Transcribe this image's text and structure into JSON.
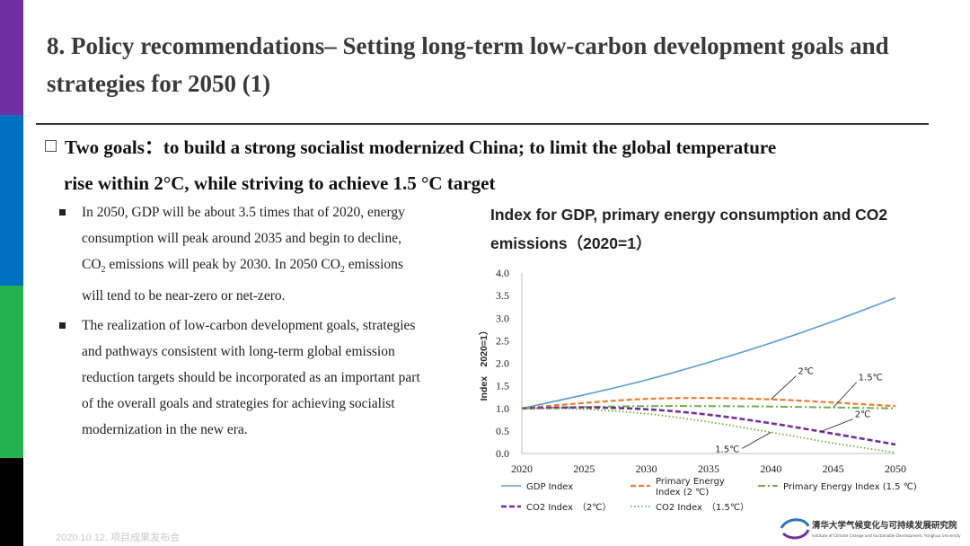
{
  "slide": {
    "title": "8. Policy recommendations– Setting long-term low-carbon development goals and strategies for 2050 (1)",
    "goal_line1": "Two goals：to build a strong socialist modernized China; to limit the global temperature",
    "goal_line2": "rise within 2°C, while striving to achieve 1.5 °C target",
    "bullet1_a": "In 2050, GDP will be about 3.5 times that of 2020, energy consumption will peak around 2035 and begin to decline, CO",
    "bullet1_b": " emissions will peak by 2030. In 2050 CO",
    "bullet1_c": " emissions will tend to be near-zero or net-zero.",
    "sub2": "2",
    "bullet2": "The realization of low-carbon development goals, strategies and pathways consistent with long-term global emission reduction targets should be incorporated as an important part of the overall goals and strategies for achieving socialist modernization in the new era.",
    "footer": "2020.10.12. 项目成果发布会",
    "logo_text": "清华大学气候变化与可持续发展研究院",
    "logo_subtext": "Institute of Climate Change and Sustainable Development, Tsinghua University"
  },
  "colors": {
    "bar_purple": "#7030a0",
    "bar_blue": "#0070c0",
    "bar_green": "#22b14c",
    "bar_black": "#000000",
    "gdp": "#5b9bd5",
    "energy_2c": "#ed7d31",
    "energy_15c": "#70ad47",
    "co2_2c": "#7030a0",
    "co2_15c": "#70ad47"
  },
  "chart_data": {
    "type": "line",
    "title": "Index for GDP, primary energy consumption and CO2 emissions（2020=1）",
    "ylabel": "Index　2020=1）",
    "xlim": [
      2020,
      2050
    ],
    "ylim": [
      0,
      4
    ],
    "x_ticks": [
      "2020",
      "2025",
      "2030",
      "2035",
      "2040",
      "2045",
      "2050"
    ],
    "y_ticks": [
      "0.0",
      "0.5",
      "1.0",
      "1.5",
      "2.0",
      "2.5",
      "3.0",
      "3.5",
      "4.0"
    ],
    "series": [
      {
        "key": "gdp",
        "name": "GDP Index",
        "x": [
          2020,
          2025,
          2030,
          2035,
          2040,
          2045,
          2050
        ],
        "values": [
          1.0,
          1.3,
          1.63,
          2.02,
          2.45,
          2.93,
          3.45
        ]
      },
      {
        "key": "energy_2c",
        "name": "Primary Energy Index (2 ℃)",
        "x": [
          2020,
          2025,
          2030,
          2035,
          2040,
          2045,
          2050
        ],
        "values": [
          1.0,
          1.12,
          1.21,
          1.23,
          1.2,
          1.13,
          1.05
        ]
      },
      {
        "key": "energy_15c",
        "name": "Primary Energy Index (1.5 ℃)",
        "x": [
          2020,
          2025,
          2030,
          2035,
          2040,
          2045,
          2050
        ],
        "values": [
          1.0,
          1.03,
          1.05,
          1.05,
          1.04,
          1.02,
          1.0
        ]
      },
      {
        "key": "co2_2c",
        "name": "CO2 Index　（2℃）",
        "x": [
          2020,
          2025,
          2030,
          2035,
          2040,
          2045,
          2050
        ],
        "values": [
          1.0,
          1.02,
          0.98,
          0.86,
          0.67,
          0.44,
          0.2
        ]
      },
      {
        "key": "co2_15c",
        "name": "CO2 Index　（1.5℃）",
        "x": [
          2020,
          2025,
          2030,
          2035,
          2040,
          2045,
          2050
        ],
        "values": [
          1.0,
          0.98,
          0.88,
          0.7,
          0.47,
          0.23,
          0.02
        ]
      }
    ],
    "annotations": [
      {
        "text": "2℃",
        "series": "energy_2c"
      },
      {
        "text": "1.5℃",
        "series": "energy_15c"
      },
      {
        "text": "2℃",
        "series": "co2_2c"
      },
      {
        "text": "1.5℃",
        "series": "co2_15c"
      }
    ],
    "legend": [
      {
        "key": "gdp",
        "label": "GDP Index"
      },
      {
        "key": "energy_2c",
        "label1": "Primary Energy",
        "label2": "Index (2 ℃)"
      },
      {
        "key": "energy_15c",
        "label": "Primary Energy Index (1.5 ℃)"
      },
      {
        "key": "co2_2c",
        "label": "CO2 Index　（2℃）"
      },
      {
        "key": "co2_15c",
        "label": "CO2 Index　（1.5℃）"
      }
    ],
    "legend_position": "bottom",
    "grid": false
  }
}
